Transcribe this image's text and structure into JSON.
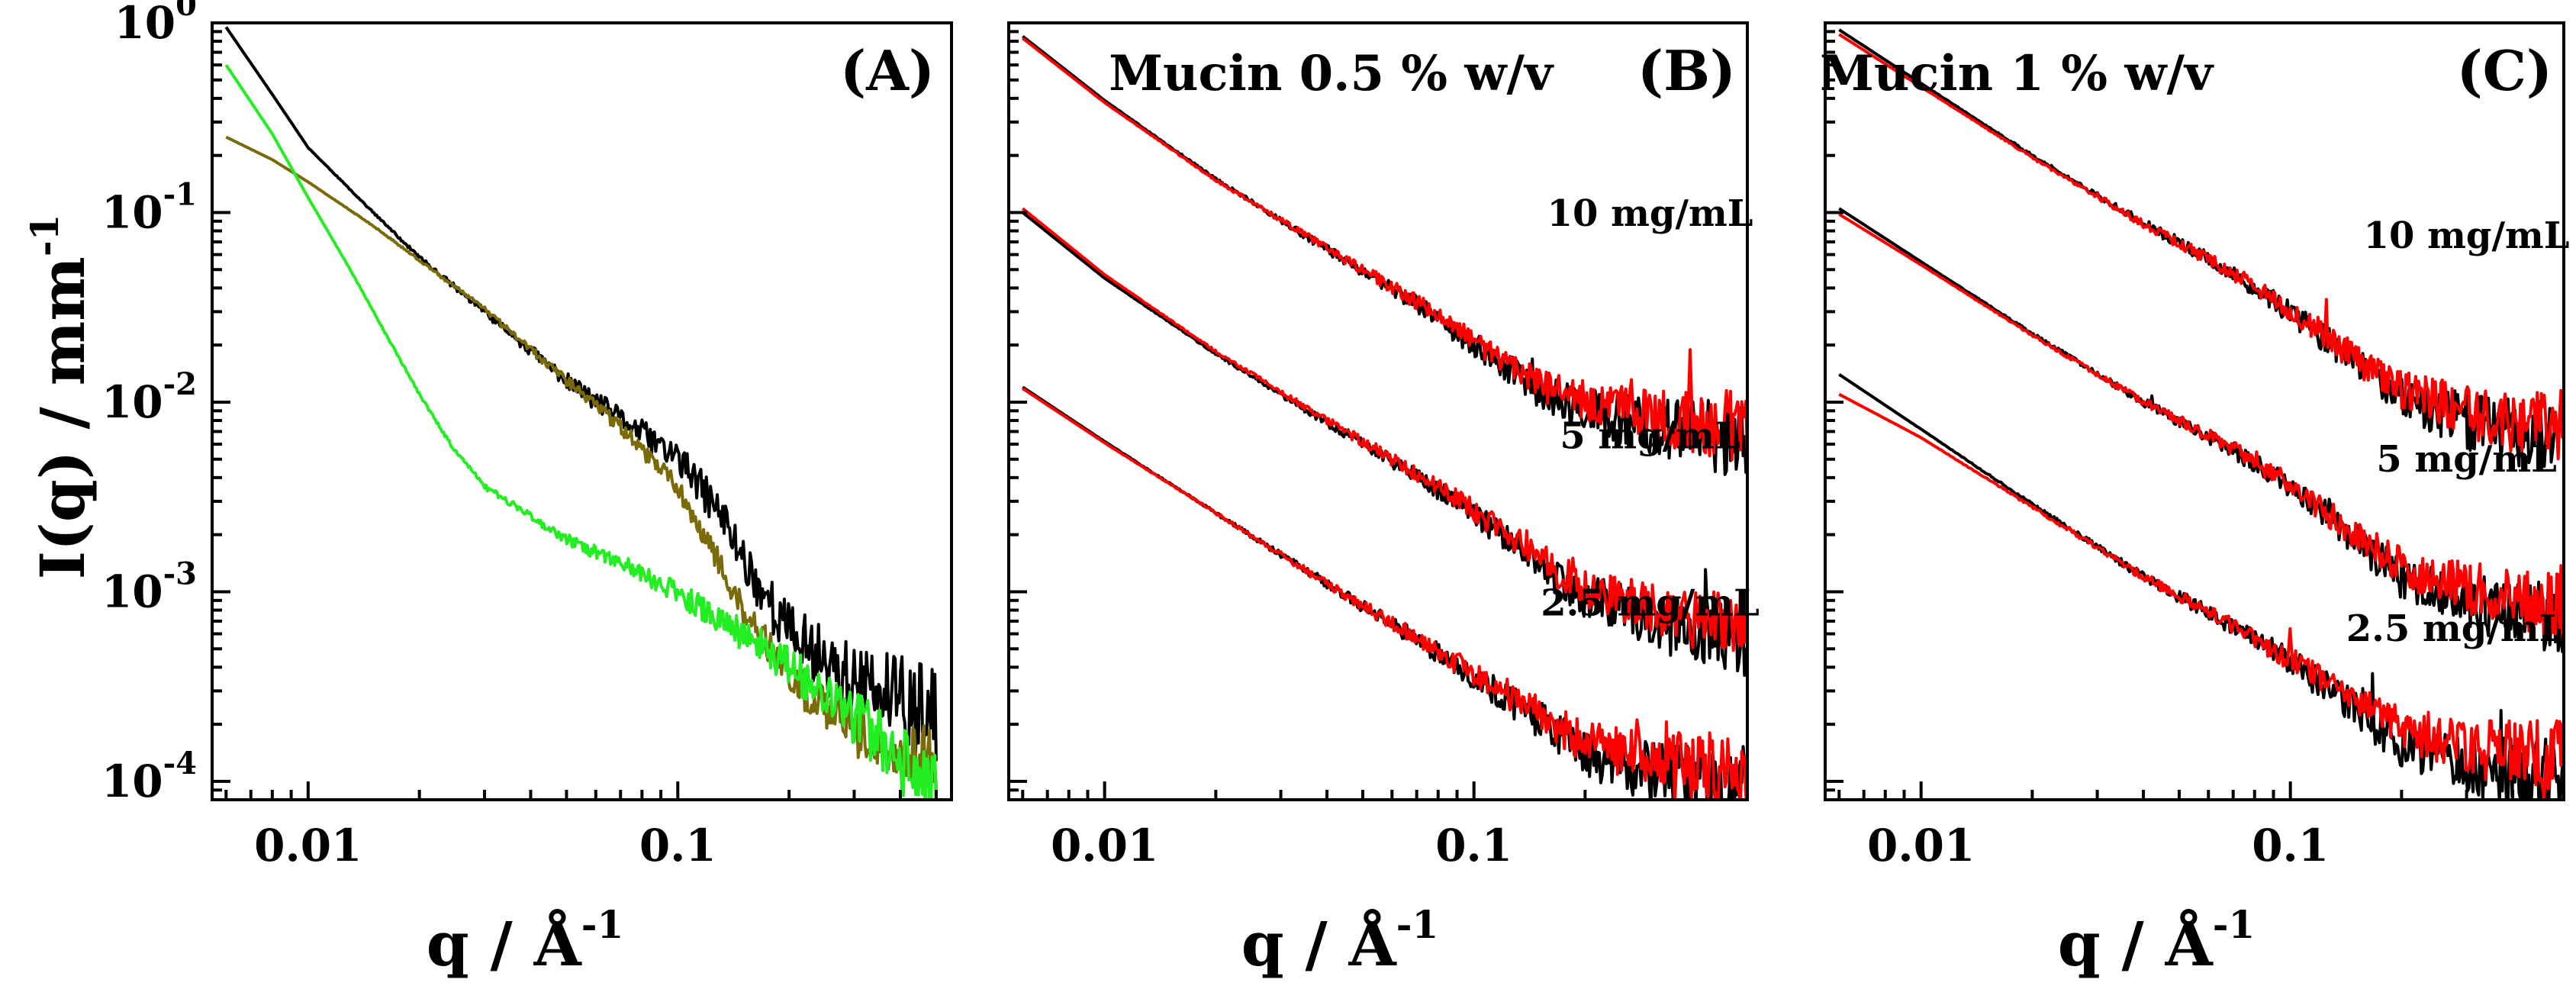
{
  "chart_data": [
    {
      "type": "line",
      "panel": "(A)",
      "title": "",
      "xscale": "log",
      "yscale": "log",
      "xlim": [
        0.0055,
        0.55
      ],
      "ylim": [
        8e-05,
        1.0
      ],
      "xticks": [
        {
          "value": 0.01,
          "label": "0.01"
        },
        {
          "value": 0.1,
          "label": "0.1"
        }
      ],
      "ylabel": "I(q) / mm",
      "ylabel_exp": "-1",
      "series": [
        {
          "name": "black",
          "color": "#000000",
          "noise": 0.28,
          "x": [
            0.006,
            0.008,
            0.01,
            0.015,
            0.02,
            0.03,
            0.05,
            0.07,
            0.1,
            0.13,
            0.16,
            0.2,
            0.3,
            0.4,
            0.5
          ],
          "y": [
            0.95,
            0.42,
            0.22,
            0.1,
            0.058,
            0.03,
            0.013,
            0.0082,
            0.0051,
            0.0026,
            0.0012,
            0.00062,
            0.00033,
            0.00026,
            0.00022
          ]
        },
        {
          "name": "olive",
          "color": "#7a6a08",
          "noise": 0.18,
          "x": [
            0.006,
            0.008,
            0.01,
            0.015,
            0.02,
            0.03,
            0.05,
            0.07,
            0.1,
            0.12,
            0.15,
            0.2,
            0.3,
            0.4,
            0.5
          ],
          "y": [
            0.25,
            0.19,
            0.145,
            0.085,
            0.056,
            0.031,
            0.013,
            0.0074,
            0.0036,
            0.0019,
            0.00082,
            0.00035,
            0.00018,
            0.00015,
            0.00013
          ]
        },
        {
          "name": "green",
          "color": "#22ee22",
          "noise": 0.2,
          "x": [
            0.006,
            0.008,
            0.01,
            0.013,
            0.016,
            0.02,
            0.025,
            0.03,
            0.04,
            0.05,
            0.07,
            0.1,
            0.15,
            0.2,
            0.3,
            0.4,
            0.5
          ],
          "y": [
            0.6,
            0.26,
            0.12,
            0.05,
            0.024,
            0.011,
            0.0055,
            0.0036,
            0.0025,
            0.0019,
            0.0014,
            0.00098,
            0.0006,
            0.0004,
            0.00022,
            0.00013,
            9e-05
          ]
        }
      ]
    },
    {
      "type": "line",
      "panel": "(B)",
      "title": "Mucin 0.5 % w/v",
      "xscale": "log",
      "yscale": "log",
      "xlim": [
        0.0055,
        0.55
      ],
      "ylim": [
        8e-05,
        1.0
      ],
      "xticks": [
        {
          "value": 0.01,
          "label": "0.01"
        },
        {
          "value": 0.1,
          "label": "0.1"
        }
      ],
      "curve_labels": [
        {
          "text": "10 mg/mL",
          "q": 0.3,
          "I": 0.085
        },
        {
          "text": "5 mg/mL",
          "q": 0.3,
          "I": 0.0057
        },
        {
          "text": "2.5 mg/mL",
          "q": 0.3,
          "I": 0.00075
        }
      ],
      "series": [
        {
          "name": "10 mg/mL data",
          "color": "#000000",
          "noise": 0.22,
          "x": [
            0.006,
            0.01,
            0.02,
            0.04,
            0.07,
            0.1,
            0.15,
            0.2,
            0.3,
            0.4,
            0.5,
            0.55
          ],
          "y": [
            0.85,
            0.39,
            0.15,
            0.064,
            0.033,
            0.02,
            0.0115,
            0.0092,
            0.0075,
            0.0068,
            0.0064,
            0.0063
          ]
        },
        {
          "name": "10 mg/mL fit",
          "color": "#ff0000",
          "noise": 0.2,
          "x": [
            0.006,
            0.01,
            0.02,
            0.04,
            0.07,
            0.1,
            0.15,
            0.2,
            0.3,
            0.4,
            0.5,
            0.55
          ],
          "y": [
            0.83,
            0.38,
            0.148,
            0.065,
            0.034,
            0.021,
            0.0125,
            0.0102,
            0.0085,
            0.0078,
            0.0075,
            0.0074
          ]
        },
        {
          "name": "5 mg/mL data",
          "color": "#000000",
          "noise": 0.22,
          "x": [
            0.006,
            0.01,
            0.02,
            0.04,
            0.07,
            0.1,
            0.15,
            0.2,
            0.3,
            0.4,
            0.5,
            0.55
          ],
          "y": [
            0.1,
            0.045,
            0.018,
            0.0078,
            0.0041,
            0.0026,
            0.0014,
            0.00095,
            0.00072,
            0.00062,
            0.00058,
            0.00056
          ]
        },
        {
          "name": "5 mg/mL fit",
          "color": "#ff0000",
          "noise": 0.2,
          "x": [
            0.006,
            0.01,
            0.02,
            0.04,
            0.07,
            0.1,
            0.15,
            0.2,
            0.3,
            0.4,
            0.5,
            0.55
          ],
          "y": [
            0.105,
            0.047,
            0.0185,
            0.008,
            0.0042,
            0.0027,
            0.0015,
            0.00105,
            0.00082,
            0.00072,
            0.00068,
            0.00066
          ]
        },
        {
          "name": "2.5 mg/mL data",
          "color": "#000000",
          "noise": 0.24,
          "x": [
            0.006,
            0.01,
            0.02,
            0.04,
            0.07,
            0.1,
            0.15,
            0.2,
            0.3,
            0.4,
            0.5,
            0.55
          ],
          "y": [
            0.012,
            0.0062,
            0.0026,
            0.0011,
            0.00056,
            0.00036,
            0.00021,
            0.00014,
            0.00011,
            0.0001,
            9e-05,
            8.8e-05
          ]
        },
        {
          "name": "2.5 mg/mL fit",
          "color": "#ff0000",
          "noise": 0.22,
          "x": [
            0.006,
            0.01,
            0.02,
            0.04,
            0.07,
            0.1,
            0.15,
            0.2,
            0.3,
            0.4,
            0.5,
            0.55
          ],
          "y": [
            0.0118,
            0.0061,
            0.0026,
            0.0011,
            0.00057,
            0.00037,
            0.00023,
            0.00016,
            0.00013,
            0.00012,
            0.00011,
            0.000108
          ]
        }
      ]
    },
    {
      "type": "line",
      "panel": "(C)",
      "title": "Mucin 1 % w/v",
      "xscale": "log",
      "yscale": "log",
      "xlim": [
        0.0055,
        0.55
      ],
      "ylim": [
        8e-05,
        1.0
      ],
      "xticks": [
        {
          "value": 0.01,
          "label": "0.01"
        },
        {
          "value": 0.1,
          "label": "0.1"
        }
      ],
      "curve_labels": [
        {
          "text": "10 mg/mL",
          "q": 0.3,
          "I": 0.065
        },
        {
          "text": "5 mg/mL",
          "q": 0.3,
          "I": 0.0043
        },
        {
          "text": "2.5 mg/mL",
          "q": 0.28,
          "I": 0.00055
        }
      ],
      "series": [
        {
          "name": "10 mg/mL data",
          "color": "#000000",
          "noise": 0.22,
          "x": [
            0.006,
            0.01,
            0.02,
            0.04,
            0.07,
            0.1,
            0.15,
            0.2,
            0.3,
            0.4,
            0.5,
            0.55
          ],
          "y": [
            0.92,
            0.48,
            0.2,
            0.088,
            0.048,
            0.03,
            0.016,
            0.0105,
            0.008,
            0.007,
            0.0066,
            0.0065
          ]
        },
        {
          "name": "10 mg/mL fit",
          "color": "#ff0000",
          "noise": 0.2,
          "x": [
            0.006,
            0.01,
            0.02,
            0.04,
            0.07,
            0.1,
            0.15,
            0.2,
            0.3,
            0.4,
            0.5,
            0.55
          ],
          "y": [
            0.87,
            0.46,
            0.195,
            0.087,
            0.048,
            0.031,
            0.017,
            0.0115,
            0.009,
            0.008,
            0.0076,
            0.0075
          ]
        },
        {
          "name": "5 mg/mL data",
          "color": "#000000",
          "noise": 0.22,
          "x": [
            0.006,
            0.01,
            0.02,
            0.04,
            0.07,
            0.1,
            0.15,
            0.2,
            0.3,
            0.4,
            0.5,
            0.55
          ],
          "y": [
            0.105,
            0.055,
            0.023,
            0.01,
            0.0056,
            0.0036,
            0.0019,
            0.0012,
            0.0009,
            0.00078,
            0.00072,
            0.0007
          ]
        },
        {
          "name": "5 mg/mL fit",
          "color": "#ff0000",
          "noise": 0.2,
          "x": [
            0.006,
            0.01,
            0.02,
            0.04,
            0.07,
            0.1,
            0.15,
            0.2,
            0.3,
            0.4,
            0.5,
            0.55
          ],
          "y": [
            0.098,
            0.053,
            0.0225,
            0.0101,
            0.0057,
            0.0037,
            0.002,
            0.00135,
            0.00105,
            0.00095,
            0.0009,
            0.00088
          ]
        },
        {
          "name": "2.5 mg/mL data",
          "color": "#000000",
          "noise": 0.24,
          "x": [
            0.006,
            0.01,
            0.02,
            0.04,
            0.07,
            0.1,
            0.15,
            0.2,
            0.3,
            0.4,
            0.5,
            0.55
          ],
          "y": [
            0.014,
            0.0072,
            0.0029,
            0.0012,
            0.00066,
            0.00043,
            0.00024,
            0.00016,
            0.00012,
            0.00011,
            0.0001,
            9.8e-05
          ]
        },
        {
          "name": "2.5 mg/mL fit",
          "color": "#ff0000",
          "noise": 0.22,
          "x": [
            0.006,
            0.01,
            0.02,
            0.04,
            0.07,
            0.1,
            0.15,
            0.2,
            0.3,
            0.4,
            0.5,
            0.55
          ],
          "y": [
            0.011,
            0.0065,
            0.0028,
            0.0012,
            0.00066,
            0.00044,
            0.00026,
            0.00019,
            0.00015,
            0.00014,
            0.00013,
            0.000128
          ]
        }
      ]
    }
  ],
  "axes": {
    "xlabel": "q / Å",
    "xlabel_exp": "-1",
    "ylabel": "I(q) / mm",
    "ylabel_exp": "-1",
    "yticks": [
      {
        "value": 1,
        "base": "10",
        "exp": "0"
      },
      {
        "value": 0.1,
        "base": "10",
        "exp": "-1"
      },
      {
        "value": 0.01,
        "base": "10",
        "exp": "-2"
      },
      {
        "value": 0.001,
        "base": "10",
        "exp": "-3"
      },
      {
        "value": 0.0001,
        "base": "10",
        "exp": "-4"
      }
    ]
  }
}
